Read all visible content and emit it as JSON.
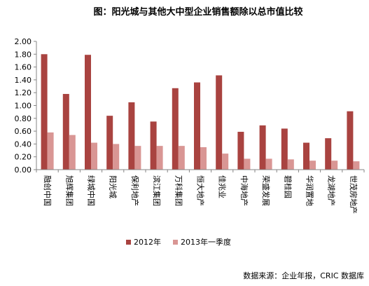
{
  "chart_data": {
    "type": "bar",
    "title": "图：阳光城与其他大中型企业销售额除以总市值比较",
    "categories": [
      "融创中国",
      "旭辉集团",
      "绿城中国",
      "阳光城",
      "保利地产",
      "滨江集团",
      "万科集团",
      "恒大地产",
      "佳兆业",
      "中海地产",
      "荣盛发展",
      "碧桂园",
      "华润置地",
      "龙湖地产",
      "世茂房地产"
    ],
    "series": [
      {
        "name": "2012年",
        "values": [
          1.8,
          1.18,
          1.79,
          0.84,
          1.05,
          0.75,
          1.27,
          1.36,
          1.47,
          0.59,
          0.69,
          0.64,
          0.42,
          0.49,
          0.91
        ],
        "color": "#a94340"
      },
      {
        "name": "2013年一季度",
        "values": [
          0.58,
          0.54,
          0.42,
          0.4,
          0.37,
          0.37,
          0.37,
          0.35,
          0.25,
          0.17,
          0.17,
          0.16,
          0.14,
          0.14,
          0.13
        ],
        "color": "#d99694"
      }
    ],
    "ylim": [
      0,
      2
    ],
    "yticks": [
      "0.00",
      "0.20",
      "0.40",
      "0.60",
      "0.80",
      "1.00",
      "1.20",
      "1.40",
      "1.60",
      "1.80",
      "2.00"
    ],
    "xlabel": "",
    "ylabel": "",
    "legend_position": "bottom",
    "grid": false,
    "source": "数据来源：企业年报，CRIC 数据库"
  }
}
